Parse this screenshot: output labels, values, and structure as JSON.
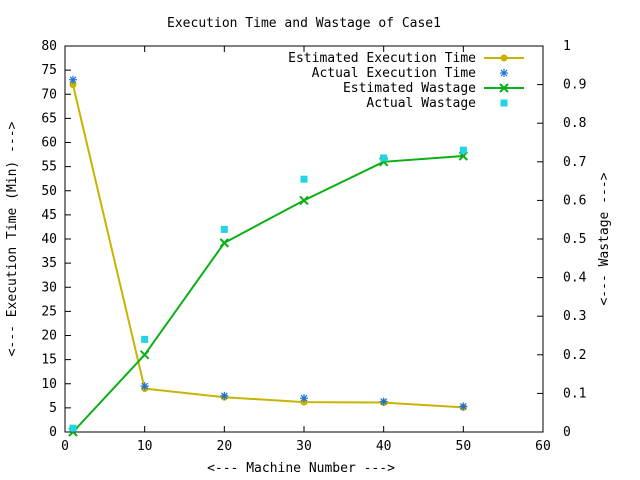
{
  "chart_data": {
    "type": "line",
    "title": "Execution Time and Wastage of Case1",
    "xlabel": "<--- Machine Number --->",
    "ylabel": "<--- Execution Time (Min) --->",
    "y2label": "<--- Wastage --->",
    "xlim": [
      0,
      60
    ],
    "ylim": [
      0,
      80
    ],
    "y2lim": [
      0,
      1
    ],
    "x_ticks": [
      0,
      10,
      20,
      30,
      40,
      50,
      60
    ],
    "x_tick_labels": [
      "0",
      "10",
      "20",
      "30",
      "40",
      "50",
      "60"
    ],
    "y_ticks": [
      0,
      5,
      10,
      15,
      20,
      25,
      30,
      35,
      40,
      45,
      50,
      55,
      60,
      65,
      70,
      75,
      80
    ],
    "y_tick_labels": [
      "0",
      "5",
      "10",
      "15",
      "20",
      "25",
      "30",
      "35",
      "40",
      "45",
      "50",
      "55",
      "60",
      "65",
      "70",
      "75",
      "80"
    ],
    "y2_ticks": [
      0,
      0.1,
      0.2,
      0.3,
      0.4,
      0.5,
      0.6,
      0.7,
      0.8,
      0.9,
      1
    ],
    "y2_tick_labels": [
      "0",
      "0.1",
      "0.2",
      "0.3",
      "0.4",
      "0.5",
      "0.6",
      "0.7",
      "0.8",
      "0.9",
      "1"
    ],
    "grid": false,
    "legend_position": "top-right",
    "series": [
      {
        "name": "Estimated Execution Time",
        "axis": "y1",
        "style": "line-circle",
        "color": "#c8b400",
        "x": [
          1,
          10,
          20,
          30,
          40,
          50
        ],
        "values": [
          72,
          9,
          7.2,
          6.2,
          6.1,
          5.1
        ]
      },
      {
        "name": "Actual Execution Time",
        "axis": "y1",
        "style": "star",
        "color": "#1f6fd6",
        "x": [
          1,
          10,
          20,
          30,
          40,
          50
        ],
        "values": [
          73,
          9.5,
          7.5,
          7,
          6.3,
          5.3
        ]
      },
      {
        "name": "Estimated Wastage",
        "axis": "y2",
        "style": "line-x",
        "color": "#0aaf14",
        "x": [
          1,
          10,
          20,
          30,
          40,
          50
        ],
        "values": [
          0,
          0.2,
          0.49,
          0.6,
          0.7,
          0.715
        ]
      },
      {
        "name": "Actual Wastage",
        "axis": "y2",
        "style": "square",
        "color": "#22d3e6",
        "x": [
          1,
          10,
          20,
          30,
          40,
          50
        ],
        "values": [
          0.01,
          0.24,
          0.525,
          0.655,
          0.71,
          0.73
        ]
      }
    ]
  }
}
